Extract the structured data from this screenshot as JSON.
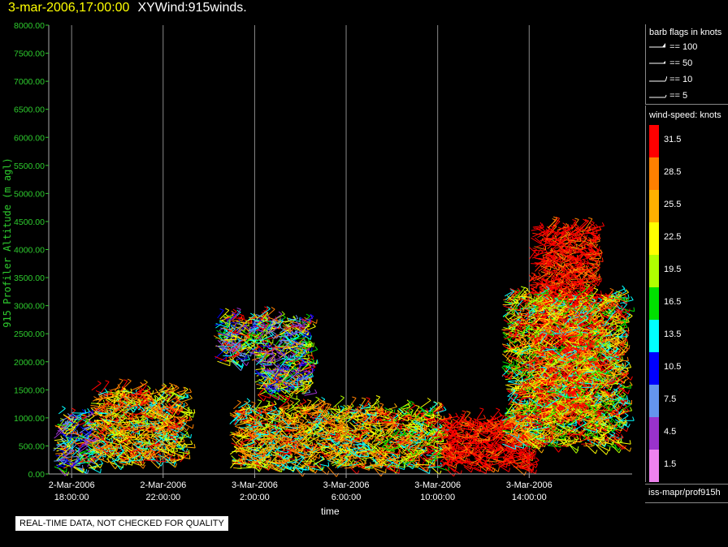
{
  "header": {
    "date": "3-mar-2006,17:00:00",
    "name": "XYWind:915winds."
  },
  "chart_data": {
    "type": "scatter",
    "ylabel": "915 Profiler Altitude (m agl)",
    "xlabel": "time",
    "ylim": [
      0,
      8000
    ],
    "y_ticks": [
      "0.00",
      "500.00",
      "1000.00",
      "1500.00",
      "2000.00",
      "2500.00",
      "3000.00",
      "3500.00",
      "4000.00",
      "4500.00",
      "5000.00",
      "5500.00",
      "6000.00",
      "6500.00",
      "7000.00",
      "7500.00",
      "8000.00"
    ],
    "x_ticks": [
      {
        "date": "2-Mar-2006",
        "time": "18:00:00"
      },
      {
        "date": "2-Mar-2006",
        "time": "22:00:00"
      },
      {
        "date": "3-Mar-2006",
        "time": "2:00:00"
      },
      {
        "date": "3-Mar-2006",
        "time": "6:00:00"
      },
      {
        "date": "3-Mar-2006",
        "time": "10:00:00"
      },
      {
        "date": "3-Mar-2006",
        "time": "14:00:00"
      }
    ],
    "x_tick_hours": [
      18,
      22,
      26,
      30,
      34,
      38
    ],
    "xlim_hours": [
      17,
      42.5
    ],
    "grid": "vertical",
    "clusters": [
      {
        "h0": 17.2,
        "h1": 18.8,
        "z0": 100,
        "z1": 1100,
        "speed": "mixed-low"
      },
      {
        "h0": 18.8,
        "h1": 22.8,
        "z0": 200,
        "z1": 1500,
        "speed": "mixed-mid"
      },
      {
        "h0": 24.2,
        "h1": 26.2,
        "z0": 2000,
        "z1": 2800,
        "speed": "mixed-low"
      },
      {
        "h0": 26.0,
        "h1": 28.2,
        "z0": 1400,
        "z1": 2800,
        "speed": "mixed-low"
      },
      {
        "h0": 24.9,
        "h1": 31.5,
        "z0": 100,
        "z1": 1200,
        "speed": "mixed-mid"
      },
      {
        "h0": 31.5,
        "h1": 34.0,
        "z0": 100,
        "z1": 1200,
        "speed": "mixed-high"
      },
      {
        "h0": 34.0,
        "h1": 38.0,
        "z0": 100,
        "z1": 1000,
        "speed": "high"
      },
      {
        "h0": 38.0,
        "h1": 40.7,
        "z0": 1000,
        "z1": 4400,
        "speed": "high"
      },
      {
        "h0": 36.8,
        "h1": 42.0,
        "z0": 500,
        "z1": 3200,
        "speed": "mixed-high"
      }
    ]
  },
  "legend": {
    "barbs_title": "barb flags in knots",
    "barbs": [
      {
        "label": "== 100",
        "kind": "pennant"
      },
      {
        "label": "== 50",
        "kind": "half-pennant"
      },
      {
        "label": "== 10",
        "kind": "full"
      },
      {
        "label": "== 5",
        "kind": "half"
      }
    ],
    "speed_title": "wind-speed: knots",
    "speeds": [
      {
        "value": "31.5",
        "color": "#ff0000"
      },
      {
        "value": "28.5",
        "color": "#ff8000"
      },
      {
        "value": "25.5",
        "color": "#ffb000"
      },
      {
        "value": "22.5",
        "color": "#ffff00"
      },
      {
        "value": "19.5",
        "color": "#b0ff00"
      },
      {
        "value": "16.5",
        "color": "#00e000"
      },
      {
        "value": "13.5",
        "color": "#00ffff"
      },
      {
        "value": "10.5",
        "color": "#0000ff"
      },
      {
        "value": "7.5",
        "color": "#6495ed"
      },
      {
        "value": "4.5",
        "color": "#9932cc"
      },
      {
        "value": "1.5",
        "color": "#ee82ee"
      }
    ]
  },
  "source": "iss-mapr/prof915h",
  "notice": "REAL-TIME DATA, NOT CHECKED FOR QUALITY"
}
